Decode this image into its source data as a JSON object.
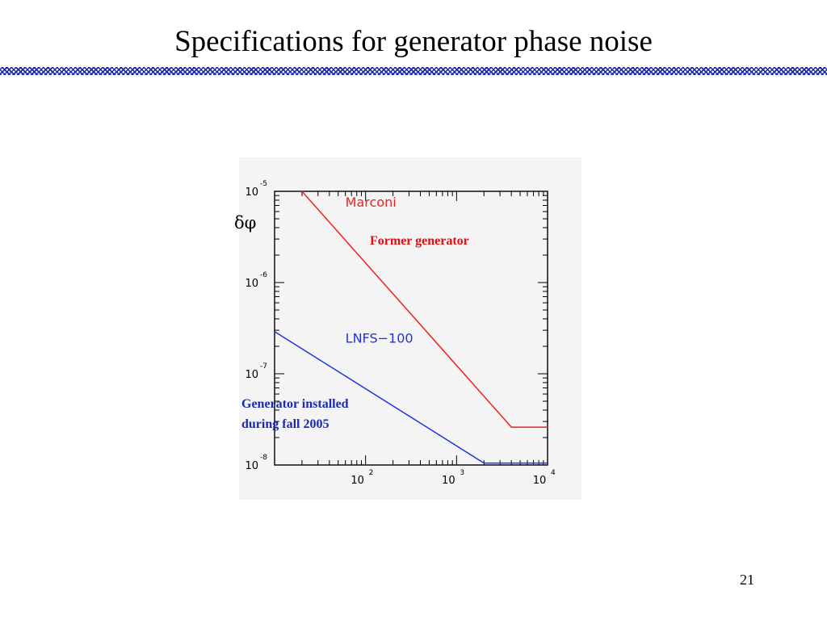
{
  "slide": {
    "title": "Specifications for generator phase noise",
    "page_number": "21"
  },
  "colors": {
    "accent_rule": "#1a2aa8",
    "marconi": "#ee2222",
    "lnfs": "#2233dd",
    "annotation_red": "#dd1111",
    "annotation_blue": "#1a2aaf"
  },
  "chart_data": {
    "type": "line",
    "title": "",
    "ylabel": "δφ",
    "xscale": "log",
    "yscale": "log",
    "xlim": [
      10,
      10000
    ],
    "ylim": [
      1e-08,
      1e-05
    ],
    "grid": false,
    "x_ticks": [
      {
        "base": "10",
        "exp": "2"
      },
      {
        "base": "10",
        "exp": "3"
      },
      {
        "base": "10",
        "exp": "4"
      }
    ],
    "y_ticks": [
      {
        "base": "10",
        "exp": "-5"
      },
      {
        "base": "10",
        "exp": "-6"
      },
      {
        "base": "10",
        "exp": "-7"
      },
      {
        "base": "10",
        "exp": "-8"
      }
    ],
    "series": [
      {
        "name": "Marconi",
        "color": "#ee2222",
        "x": [
          20,
          4000,
          10000
        ],
        "y": [
          1e-05,
          2.6e-08,
          2.6e-08
        ]
      },
      {
        "name": "LNFS−100",
        "color": "#2233dd",
        "x": [
          10,
          2000,
          10000
        ],
        "y": [
          2.9e-07,
          1.05e-08,
          1.05e-08
        ]
      }
    ],
    "annotations": {
      "former": "Former generator",
      "lnfs_line1": "Generator installed",
      "lnfs_line2": "during fall 2005"
    }
  }
}
